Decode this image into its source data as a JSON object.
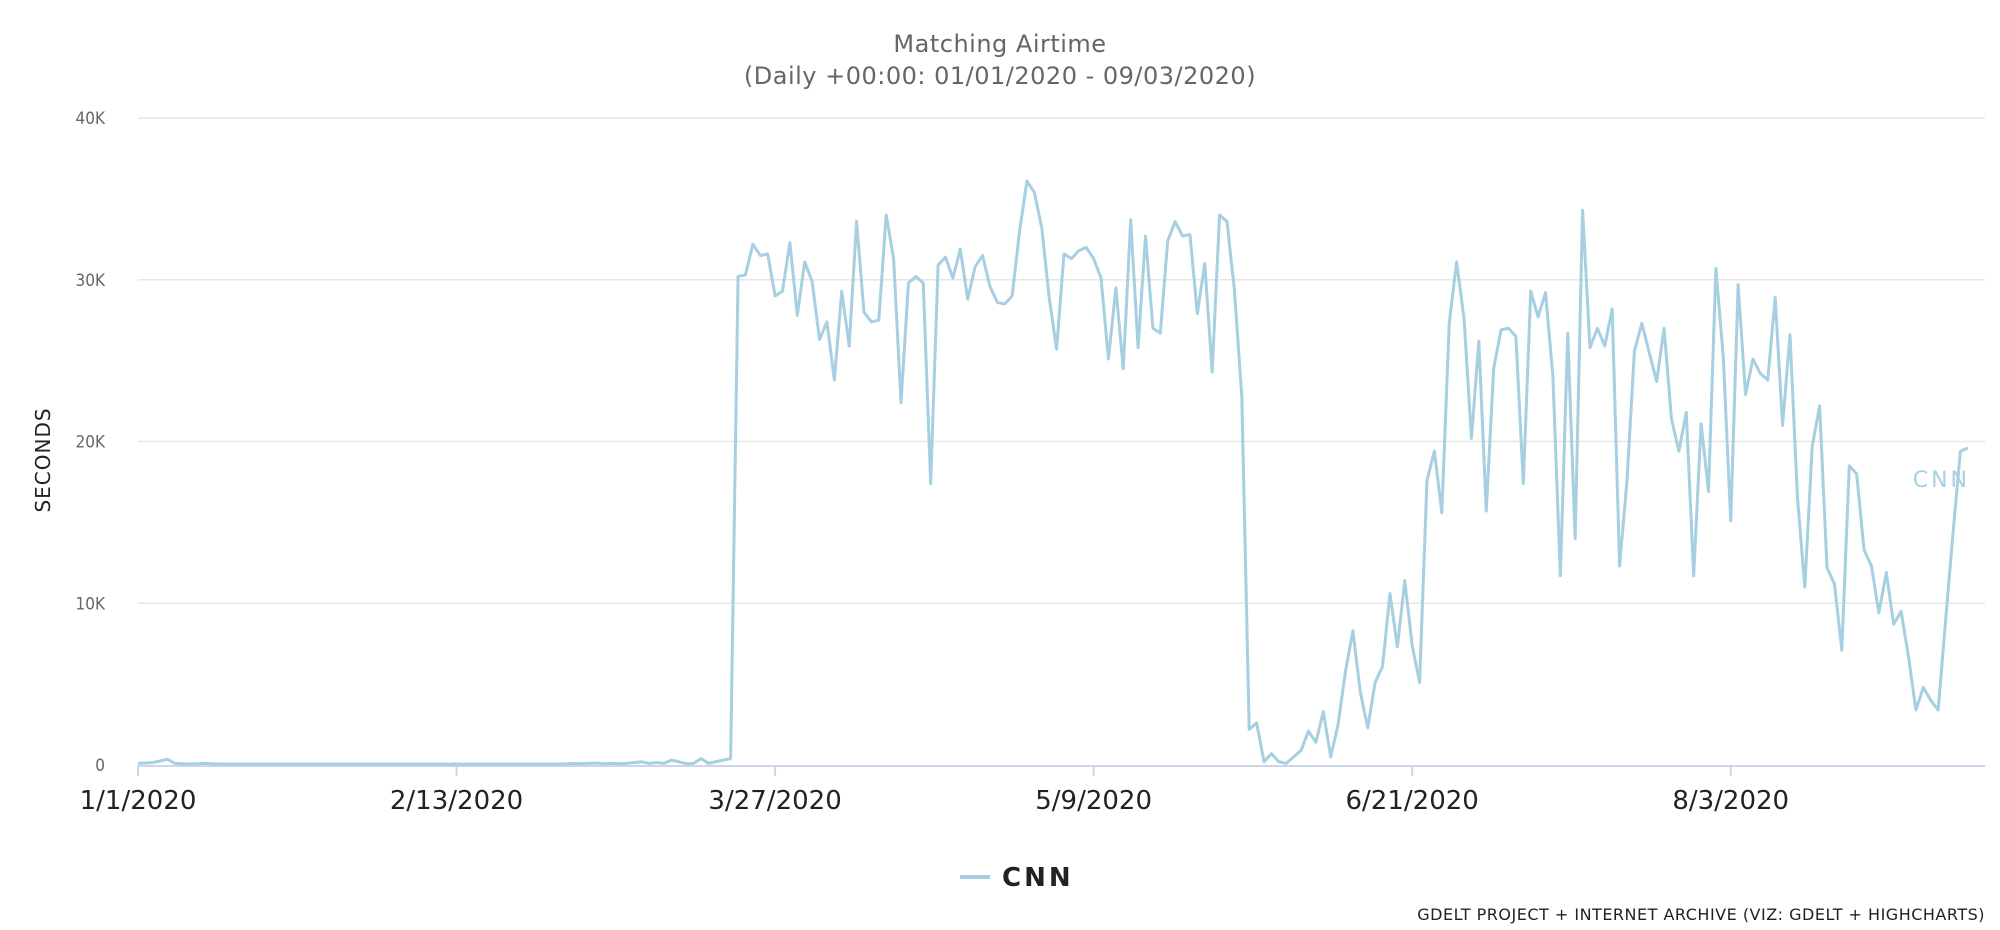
{
  "chart_data": {
    "type": "line",
    "title": "Matching Airtime",
    "subtitle": "(Daily +00:00: 01/01/2020 - 09/03/2020)",
    "ylabel": "SECONDS",
    "xlabel": "",
    "ylim": [
      0,
      40000
    ],
    "y_ticks": [
      0,
      10000,
      20000,
      30000,
      40000
    ],
    "y_tick_labels": [
      "0",
      "10K",
      "20K",
      "30K",
      "40K"
    ],
    "x_start": "2020-01-01",
    "x_ticks": [
      "1/1/2020",
      "2/13/2020",
      "3/27/2020",
      "5/9/2020",
      "6/21/2020",
      "8/3/2020"
    ],
    "grid": true,
    "legend_position": "bottom-center",
    "credit": "GDELT PROJECT + INTERNET ARCHIVE (VIZ: GDELT + HIGHCHARTS)",
    "series": [
      {
        "name": "CNN",
        "color": "#a6cfe1",
        "values": [
          100,
          120,
          150,
          250,
          350,
          100,
          80,
          60,
          80,
          100,
          80,
          60,
          50,
          60,
          50,
          60,
          50,
          60,
          50,
          60,
          50,
          60,
          50,
          60,
          50,
          60,
          50,
          60,
          50,
          60,
          50,
          60,
          50,
          60,
          50,
          60,
          50,
          60,
          50,
          60,
          50,
          60,
          50,
          60,
          50,
          60,
          50,
          60,
          50,
          60,
          50,
          60,
          50,
          60,
          50,
          60,
          50,
          60,
          80,
          100,
          80,
          100,
          120,
          80,
          100,
          80,
          100,
          150,
          200,
          100,
          150,
          100,
          300,
          200,
          80,
          100,
          400,
          100,
          200,
          300,
          400,
          30200,
          30300,
          32200,
          31500,
          31600,
          29000,
          29300,
          32300,
          27800,
          31100,
          29900,
          26300,
          27400,
          23800,
          29300,
          25900,
          33600,
          28000,
          27400,
          27500,
          34000,
          31300,
          22400,
          29800,
          30200,
          29800,
          17400,
          30900,
          31400,
          30100,
          31900,
          28800,
          30800,
          31500,
          29600,
          28600,
          28500,
          29000,
          33000,
          36100,
          35400,
          33200,
          28900,
          25700,
          31600,
          31300,
          31800,
          32000,
          31300,
          30100,
          25100,
          29500,
          24500,
          33700,
          25800,
          32700,
          27000,
          26700,
          32400,
          33600,
          32700,
          32800,
          27900,
          31000,
          24300,
          34000,
          33600,
          29400,
          22800,
          2200,
          2600,
          200,
          700,
          200,
          100,
          500,
          900,
          2100,
          1400,
          3300,
          500,
          2500,
          5800,
          8300,
          4500,
          2300,
          5100,
          6100,
          10600,
          7300,
          11400,
          7400,
          5100,
          17600,
          19400,
          15600,
          27300,
          31100,
          27600,
          20200,
          26200,
          15700,
          24500,
          26900,
          27000,
          26500,
          17400,
          29300,
          27700,
          29200,
          24000,
          11700,
          26700,
          14000,
          34300,
          25800,
          27000,
          25900,
          28200,
          12300,
          17600,
          25600,
          27300,
          25500,
          23700,
          27000,
          21400,
          19400,
          21800,
          11700,
          21100,
          16900,
          30700,
          25200,
          15100,
          29700,
          22900,
          25100,
          24200,
          23800,
          28900,
          21000,
          26600,
          16600,
          11000,
          19700,
          22200,
          12200,
          11200,
          7100,
          18500,
          18000,
          13300,
          12300,
          9400,
          11900,
          8700,
          9500,
          6700,
          3400,
          4800,
          4000,
          3400,
          8900,
          14300,
          19400,
          19600
        ]
      }
    ]
  }
}
